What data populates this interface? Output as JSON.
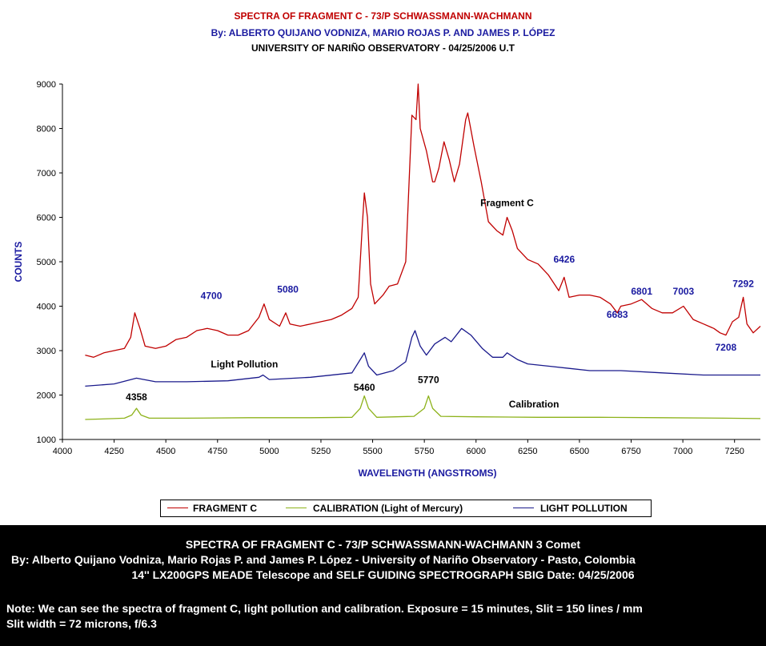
{
  "header": {
    "title": "SPECTRA OF FRAGMENT C - 73/P SCHWASSMANN-WACHMANN",
    "authors": "By: ALBERTO QUIJANO VODNIZA, MARIO ROJAS P.  AND JAMES P. LÓPEZ",
    "observatory": "UNIVERSITY OF NARIÑO OBSERVATORY - 04/25/2006 U.T"
  },
  "chart_data": {
    "type": "line",
    "xlabel": "WAVELENGTH  (ANGSTROMS)",
    "ylabel": "COUNTS",
    "xlim": [
      4000,
      7375
    ],
    "ylim": [
      1000,
      9000
    ],
    "xticks": [
      4000,
      4250,
      4500,
      4750,
      5000,
      5250,
      5500,
      5750,
      6000,
      6250,
      6500,
      6750,
      7000,
      7250
    ],
    "yticks": [
      1000,
      2000,
      3000,
      4000,
      5000,
      6000,
      7000,
      8000,
      9000
    ],
    "grid": false,
    "legend_position": "bottom",
    "series": [
      {
        "name": "FRAGMENT C",
        "color": "#c00000",
        "points": [
          [
            4110,
            2900
          ],
          [
            4150,
            2850
          ],
          [
            4200,
            2950
          ],
          [
            4250,
            3000
          ],
          [
            4300,
            3050
          ],
          [
            4330,
            3300
          ],
          [
            4350,
            3850
          ],
          [
            4375,
            3500
          ],
          [
            4400,
            3100
          ],
          [
            4450,
            3050
          ],
          [
            4500,
            3100
          ],
          [
            4550,
            3250
          ],
          [
            4600,
            3300
          ],
          [
            4650,
            3450
          ],
          [
            4700,
            3500
          ],
          [
            4750,
            3450
          ],
          [
            4800,
            3350
          ],
          [
            4850,
            3350
          ],
          [
            4900,
            3450
          ],
          [
            4950,
            3750
          ],
          [
            4975,
            4050
          ],
          [
            5000,
            3700
          ],
          [
            5050,
            3550
          ],
          [
            5080,
            3850
          ],
          [
            5100,
            3600
          ],
          [
            5150,
            3550
          ],
          [
            5200,
            3600
          ],
          [
            5250,
            3650
          ],
          [
            5300,
            3700
          ],
          [
            5350,
            3800
          ],
          [
            5400,
            3950
          ],
          [
            5430,
            4200
          ],
          [
            5450,
            5800
          ],
          [
            5460,
            6550
          ],
          [
            5475,
            6000
          ],
          [
            5490,
            4500
          ],
          [
            5510,
            4050
          ],
          [
            5550,
            4250
          ],
          [
            5580,
            4450
          ],
          [
            5620,
            4500
          ],
          [
            5660,
            5000
          ],
          [
            5690,
            8300
          ],
          [
            5710,
            8200
          ],
          [
            5720,
            9000
          ],
          [
            5730,
            8000
          ],
          [
            5760,
            7500
          ],
          [
            5790,
            6800
          ],
          [
            5800,
            6800
          ],
          [
            5820,
            7100
          ],
          [
            5845,
            7700
          ],
          [
            5870,
            7300
          ],
          [
            5895,
            6800
          ],
          [
            5920,
            7200
          ],
          [
            5950,
            8200
          ],
          [
            5960,
            8350
          ],
          [
            5990,
            7600
          ],
          [
            6025,
            6800
          ],
          [
            6060,
            5900
          ],
          [
            6100,
            5700
          ],
          [
            6130,
            5600
          ],
          [
            6150,
            6000
          ],
          [
            6175,
            5700
          ],
          [
            6200,
            5300
          ],
          [
            6250,
            5050
          ],
          [
            6300,
            4950
          ],
          [
            6350,
            4700
          ],
          [
            6400,
            4350
          ],
          [
            6426,
            4650
          ],
          [
            6450,
            4200
          ],
          [
            6500,
            4250
          ],
          [
            6550,
            4250
          ],
          [
            6600,
            4200
          ],
          [
            6650,
            4050
          ],
          [
            6683,
            3850
          ],
          [
            6700,
            4000
          ],
          [
            6750,
            4050
          ],
          [
            6801,
            4150
          ],
          [
            6850,
            3950
          ],
          [
            6900,
            3850
          ],
          [
            6950,
            3850
          ],
          [
            7003,
            4000
          ],
          [
            7050,
            3700
          ],
          [
            7100,
            3600
          ],
          [
            7150,
            3500
          ],
          [
            7180,
            3400
          ],
          [
            7208,
            3350
          ],
          [
            7240,
            3650
          ],
          [
            7270,
            3750
          ],
          [
            7292,
            4200
          ],
          [
            7310,
            3600
          ],
          [
            7340,
            3400
          ],
          [
            7375,
            3550
          ]
        ]
      },
      {
        "name": "CALIBRATION   (Light of Mercury)",
        "color": "#8db21a",
        "points": [
          [
            4110,
            1450
          ],
          [
            4250,
            1470
          ],
          [
            4300,
            1480
          ],
          [
            4335,
            1550
          ],
          [
            4358,
            1700
          ],
          [
            4380,
            1550
          ],
          [
            4420,
            1480
          ],
          [
            4600,
            1480
          ],
          [
            4900,
            1490
          ],
          [
            5200,
            1490
          ],
          [
            5400,
            1500
          ],
          [
            5440,
            1700
          ],
          [
            5460,
            1980
          ],
          [
            5480,
            1700
          ],
          [
            5520,
            1500
          ],
          [
            5700,
            1520
          ],
          [
            5750,
            1700
          ],
          [
            5770,
            1980
          ],
          [
            5790,
            1700
          ],
          [
            5830,
            1520
          ],
          [
            6000,
            1510
          ],
          [
            6300,
            1500
          ],
          [
            6600,
            1500
          ],
          [
            6900,
            1490
          ],
          [
            7200,
            1480
          ],
          [
            7375,
            1470
          ]
        ]
      },
      {
        "name": "LIGHT POLLUTION",
        "color": "#1a1a8c",
        "points": [
          [
            4110,
            2200
          ],
          [
            4250,
            2250
          ],
          [
            4358,
            2380
          ],
          [
            4450,
            2300
          ],
          [
            4600,
            2300
          ],
          [
            4800,
            2320
          ],
          [
            4950,
            2400
          ],
          [
            4970,
            2450
          ],
          [
            5000,
            2350
          ],
          [
            5200,
            2400
          ],
          [
            5400,
            2500
          ],
          [
            5440,
            2800
          ],
          [
            5460,
            2950
          ],
          [
            5480,
            2650
          ],
          [
            5520,
            2450
          ],
          [
            5600,
            2550
          ],
          [
            5660,
            2750
          ],
          [
            5690,
            3300
          ],
          [
            5705,
            3450
          ],
          [
            5730,
            3100
          ],
          [
            5760,
            2900
          ],
          [
            5800,
            3150
          ],
          [
            5850,
            3300
          ],
          [
            5880,
            3200
          ],
          [
            5930,
            3500
          ],
          [
            5975,
            3350
          ],
          [
            6030,
            3050
          ],
          [
            6080,
            2850
          ],
          [
            6130,
            2850
          ],
          [
            6150,
            2950
          ],
          [
            6200,
            2800
          ],
          [
            6250,
            2700
          ],
          [
            6350,
            2650
          ],
          [
            6450,
            2600
          ],
          [
            6550,
            2550
          ],
          [
            6700,
            2550
          ],
          [
            6900,
            2500
          ],
          [
            7100,
            2450
          ],
          [
            7250,
            2450
          ],
          [
            7375,
            2450
          ]
        ]
      }
    ],
    "annotations": [
      {
        "text": "Fragment  C",
        "x": 6150,
        "y": 6250,
        "color": "#000000"
      },
      {
        "text": "Light Pollution",
        "x": 4880,
        "y": 2620,
        "color": "#000000"
      },
      {
        "text": "Calibration",
        "x": 6280,
        "y": 1720,
        "color": "#000000"
      },
      {
        "text": "4700",
        "x": 4720,
        "y": 4160,
        "color": "#1a1aa0"
      },
      {
        "text": "5080",
        "x": 5090,
        "y": 4310,
        "color": "#1a1aa0"
      },
      {
        "text": "6426",
        "x": 6426,
        "y": 4980,
        "color": "#1a1aa0"
      },
      {
        "text": "6683",
        "x": 6683,
        "y": 3740,
        "color": "#1a1aa0"
      },
      {
        "text": "6801",
        "x": 6801,
        "y": 4260,
        "color": "#1a1aa0"
      },
      {
        "text": "7003",
        "x": 7003,
        "y": 4260,
        "color": "#1a1aa0"
      },
      {
        "text": "7208",
        "x": 7208,
        "y": 3000,
        "color": "#1a1aa0"
      },
      {
        "text": "7292",
        "x": 7292,
        "y": 4430,
        "color": "#1a1aa0"
      },
      {
        "text": "4358",
        "x": 4358,
        "y": 1880,
        "color": "#000000"
      },
      {
        "text": "5460",
        "x": 5460,
        "y": 2100,
        "color": "#000000"
      },
      {
        "text": "5770",
        "x": 5770,
        "y": 2270,
        "color": "#000000"
      }
    ]
  },
  "legend": {
    "fragment": "FRAGMENT C",
    "calibration": "CALIBRATION   (Light of Mercury)",
    "pollution": "LIGHT POLLUTION"
  },
  "footer": {
    "line1": "SPECTRA OF FRAGMENT C - 73/P SCHWASSMANN-WACHMANN 3 Comet",
    "line2": "By: Alberto Quijano Vodniza, Mario Rojas P. and James P. López - University of Nariño Observatory - Pasto, Colombia",
    "line3": "14'' LX200GPS MEADE Telescope and SELF GUIDING SPECTROGRAPH SBIG       Date: 04/25/2006",
    "line4": "Note: We can see the spectra of  fragment C, light pollution and calibration.     Exposure = 15 minutes, Slit = 150 lines / mm",
    "line5": "Slit width = 72 microns,   f/6.3"
  }
}
